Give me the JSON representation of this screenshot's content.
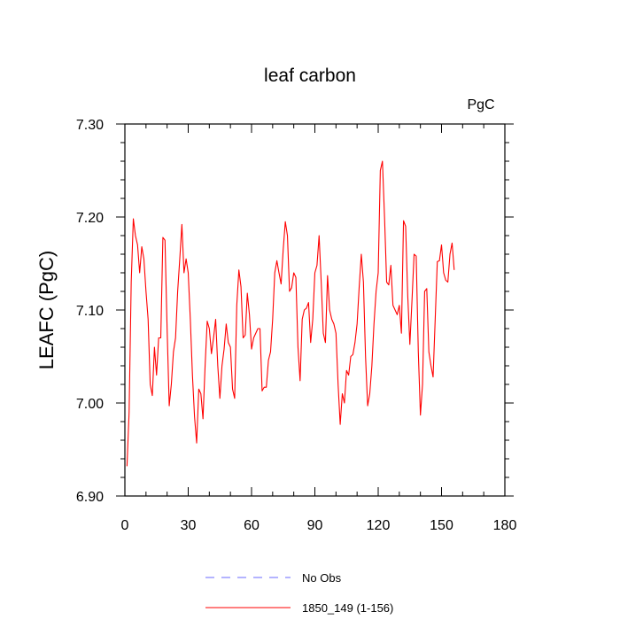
{
  "chart_data": {
    "type": "line",
    "title": "leaf carbon",
    "units": "PgC",
    "ylabel": "LEAFC  (PgC)",
    "xlabel": "",
    "xlim": [
      0,
      180
    ],
    "ylim": [
      6.9,
      7.3
    ],
    "xticks": [
      0,
      30,
      60,
      90,
      120,
      150,
      180
    ],
    "xtick_labels": [
      "0",
      "30",
      "60",
      "90",
      "120",
      "150",
      "180"
    ],
    "yticks": [
      6.9,
      7.0,
      7.1,
      7.2,
      7.3
    ],
    "ytick_labels": [
      "6.90",
      "7.00",
      "7.10",
      "7.20",
      "7.30"
    ],
    "grid": false,
    "legend_position": "bottom-center",
    "series": [
      {
        "name": "No Obs",
        "color": "#6a6aff",
        "dash": "dashed",
        "x": [],
        "y": []
      },
      {
        "name": "1850_149 (1-156)",
        "color": "#ff0000",
        "dash": "solid",
        "x": [
          1,
          2,
          3,
          4,
          5,
          6,
          7,
          8,
          9,
          10,
          11,
          12,
          13,
          14,
          15,
          16,
          17,
          18,
          19,
          20,
          21,
          22,
          23,
          24,
          25,
          26,
          27,
          28,
          29,
          30,
          31,
          32,
          33,
          34,
          35,
          36,
          37,
          38,
          39,
          40,
          41,
          42,
          43,
          44,
          45,
          46,
          47,
          48,
          49,
          50,
          51,
          52,
          53,
          54,
          55,
          56,
          57,
          58,
          59,
          60,
          61,
          62,
          63,
          64,
          65,
          66,
          67,
          68,
          69,
          70,
          71,
          72,
          73,
          74,
          75,
          76,
          77,
          78,
          79,
          80,
          81,
          82,
          83,
          84,
          85,
          86,
          87,
          88,
          89,
          90,
          91,
          92,
          93,
          94,
          95,
          96,
          97,
          98,
          99,
          100,
          101,
          102,
          103,
          104,
          105,
          106,
          107,
          108,
          109,
          110,
          111,
          112,
          113,
          114,
          115,
          116,
          117,
          118,
          119,
          120,
          121,
          122,
          123,
          124,
          125,
          126,
          127,
          128,
          129,
          130,
          131,
          132,
          133,
          134,
          135,
          136,
          137,
          138,
          139,
          140,
          141,
          142,
          143,
          144,
          145,
          146,
          147,
          148,
          149,
          150,
          151,
          152,
          153,
          154,
          155,
          156
        ],
        "y": [
          6.932,
          6.99,
          7.13,
          7.198,
          7.18,
          7.17,
          7.14,
          7.168,
          7.155,
          7.12,
          7.09,
          7.02,
          7.008,
          7.06,
          7.03,
          7.07,
          7.07,
          7.178,
          7.175,
          7.08,
          6.997,
          7.02,
          7.055,
          7.07,
          7.12,
          7.155,
          7.192,
          7.14,
          7.155,
          7.14,
          7.09,
          7.03,
          6.985,
          6.957,
          7.015,
          7.01,
          6.983,
          7.04,
          7.088,
          7.08,
          7.053,
          7.07,
          7.09,
          7.04,
          7.005,
          7.04,
          7.058,
          7.085,
          7.065,
          7.06,
          7.015,
          7.005,
          7.105,
          7.143,
          7.125,
          7.07,
          7.073,
          7.118,
          7.095,
          7.058,
          7.07,
          7.075,
          7.08,
          7.08,
          7.013,
          7.017,
          7.017,
          7.046,
          7.055,
          7.09,
          7.14,
          7.153,
          7.14,
          7.128,
          7.165,
          7.195,
          7.18,
          7.12,
          7.124,
          7.14,
          7.135,
          7.06,
          7.024,
          7.09,
          7.1,
          7.102,
          7.108,
          7.065,
          7.09,
          7.14,
          7.148,
          7.18,
          7.13,
          7.075,
          7.065,
          7.137,
          7.1,
          7.09,
          7.085,
          7.075,
          7.02,
          6.977,
          7.01,
          7.0,
          7.035,
          7.03,
          7.05,
          7.052,
          7.065,
          7.085,
          7.125,
          7.16,
          7.13,
          7.05,
          6.997,
          7.01,
          7.04,
          7.085,
          7.12,
          7.14,
          7.25,
          7.26,
          7.2,
          7.13,
          7.127,
          7.148,
          7.105,
          7.1,
          7.095,
          7.105,
          7.075,
          7.196,
          7.19,
          7.115,
          7.063,
          7.11,
          7.16,
          7.158,
          7.055,
          6.987,
          7.02,
          7.12,
          7.123,
          7.055,
          7.04,
          7.028,
          7.09,
          7.152,
          7.153,
          7.17,
          7.14,
          7.132,
          7.13,
          7.16,
          7.172,
          7.143
        ]
      }
    ]
  }
}
